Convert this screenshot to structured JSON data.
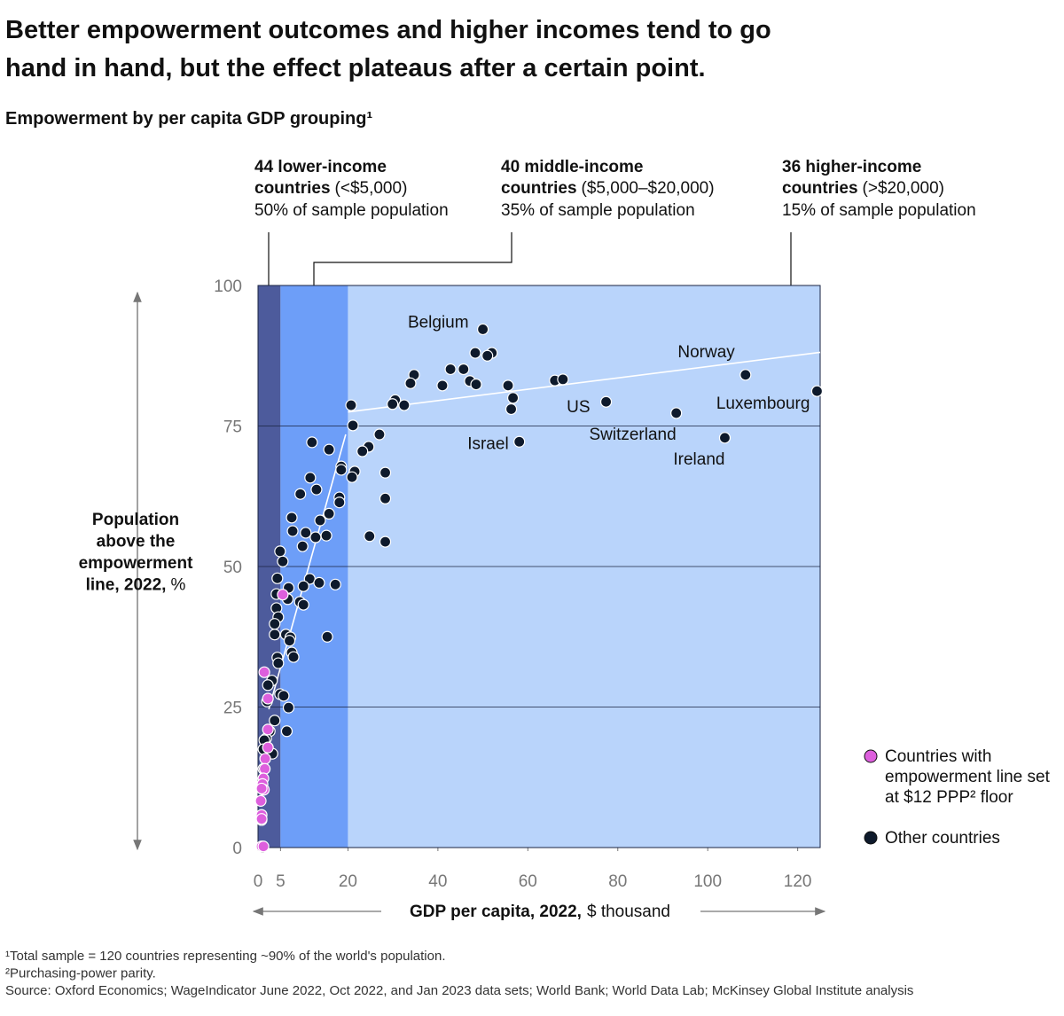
{
  "chart_data": {
    "type": "scatter",
    "title_lines": [
      "Better empowerment outcomes and higher incomes tend to go",
      "hand in hand, but the effect plateaus after a certain point."
    ],
    "subtitle": "Empowerment by per capita GDP grouping¹",
    "groups": [
      {
        "title_lines": [
          "44 lower-income",
          "countries"
        ],
        "range": "(<$5,000)",
        "share": "50% of sample population"
      },
      {
        "title_lines": [
          "40 middle-income",
          "countries"
        ],
        "range": "($5,000–$20,000)",
        "share": "35% of sample population"
      },
      {
        "title_lines": [
          "36 higher-income",
          "countries"
        ],
        "range": "(>$20,000)",
        "share": "15% of sample population"
      }
    ],
    "bands": [
      {
        "x0": 0,
        "x1": 5,
        "color": "#4d5b9c"
      },
      {
        "x0": 5,
        "x1": 20,
        "color": "#6d9ef8"
      },
      {
        "x0": 20,
        "x1": 125,
        "color": "#b9d4fb"
      }
    ],
    "y_label_lines": [
      "Population",
      "above the",
      "empowerment",
      "line, 2022,"
    ],
    "y_label_unit": "%",
    "x_label": "GDP per capita, 2022,",
    "x_label_unit": "$ thousand",
    "xlim": [
      0,
      125
    ],
    "ylim": [
      0,
      100
    ],
    "xticks": [
      0,
      5,
      20,
      40,
      60,
      80,
      100,
      120
    ],
    "yticks": [
      0,
      25,
      50,
      75,
      100
    ],
    "grid": true,
    "trend_lines": [
      {
        "color": "#ffffff",
        "x": [
          2.4,
          19.5
        ],
        "values": [
          24.6,
          73.5
        ]
      },
      {
        "color": "#ffffff",
        "x": [
          20,
          125
        ],
        "values": [
          77.5,
          88.1
        ]
      }
    ],
    "series": [
      {
        "name": "Countries with empowerment line set at $12 PPP² floor",
        "color": "#dd5fdd",
        "x": [
          1.4,
          2.2,
          5.5,
          2.2,
          2.2,
          1.6,
          1.5,
          1.2,
          1,
          1.3,
          0.8,
          0.6,
          0.8,
          0.8,
          0.8,
          1.2
        ],
        "values": [
          31.2,
          26.5,
          45,
          21,
          17.8,
          15.8,
          14,
          12.3,
          11.3,
          10.3,
          10.5,
          8.3,
          5.8,
          5.1,
          0.2,
          0.2
        ]
      },
      {
        "name": "Other countries",
        "color": "#0e1a2c",
        "x": [
          50,
          108.4,
          124.3,
          77.4,
          93,
          103.8,
          58.1,
          52,
          48.3,
          51,
          42.8,
          45.7,
          34.7,
          33.9,
          47.1,
          48.5,
          41,
          55.6,
          66,
          67.8,
          56.7,
          56.3,
          30.5,
          29.9,
          32.5,
          20.7,
          21.1,
          27,
          24.6,
          23.2,
          15.8,
          12,
          18.5,
          18.5,
          21.5,
          20.9,
          28.3,
          11.6,
          13,
          9.4,
          18.1,
          18.1,
          28.3,
          15.8,
          13.8,
          7.5,
          7.7,
          10.6,
          12.8,
          15.2,
          24.8,
          28.3,
          9.9,
          4.9,
          5.5,
          4.3,
          11.5,
          17.2,
          13.6,
          10.1,
          6.8,
          4.1,
          6.6,
          9.3,
          10.1,
          4.1,
          4.5,
          3.7,
          3.7,
          6.2,
          7.2,
          7,
          15.4,
          7.5,
          7.9,
          4.3,
          4.5,
          3.1,
          2.2,
          4.9,
          5.7,
          2,
          6.8,
          3.7,
          2.6,
          6.4,
          1.8,
          1.4,
          3.2,
          1.2,
          1.2,
          1.2,
          0.8,
          1
        ],
        "values": [
          92.2,
          84.1,
          81.2,
          79.3,
          77.3,
          72.9,
          72.2,
          88,
          88,
          87.5,
          85.1,
          85.1,
          84.1,
          82.6,
          83,
          82.4,
          82.2,
          82.2,
          83.1,
          83.3,
          80,
          78,
          79.6,
          78.9,
          78.7,
          78.7,
          75.1,
          73.5,
          71.3,
          70.5,
          70.8,
          72.1,
          67.8,
          67.2,
          66.9,
          65.9,
          66.7,
          65.8,
          63.7,
          62.9,
          62.3,
          61.4,
          62.1,
          59.4,
          58.2,
          58.7,
          56.3,
          56,
          55.2,
          55.5,
          55.4,
          54.4,
          53.6,
          52.7,
          50.9,
          47.9,
          47.8,
          46.8,
          47.1,
          46.5,
          46.2,
          45.1,
          44.2,
          43.7,
          43.2,
          42.6,
          41,
          39.8,
          37.9,
          37.9,
          37.4,
          36.8,
          37.5,
          34.7,
          33.9,
          33.8,
          32.8,
          29.7,
          28.9,
          27.3,
          27,
          26,
          24.9,
          22.6,
          20.7,
          20.7,
          19.4,
          19.1,
          16.7,
          17.5,
          14,
          10.3,
          4.9,
          0
        ],
        "labels": [
          "Belgium",
          "Norway",
          "Luxembourg",
          "US",
          "Switzerland",
          "Ireland",
          "Israel",
          null,
          null,
          null,
          null,
          null,
          null,
          null,
          null,
          null,
          null,
          null,
          null,
          null,
          null,
          null,
          null,
          null,
          null,
          null,
          null,
          null,
          null,
          null,
          null,
          null,
          null,
          null,
          null,
          null,
          null,
          null,
          null,
          null,
          null,
          null,
          null,
          null,
          null,
          null,
          null,
          null,
          null,
          null,
          null,
          null,
          null,
          null,
          null,
          null,
          null,
          null,
          null,
          null,
          null,
          null,
          null,
          null,
          null,
          null,
          null,
          null,
          null,
          null,
          null,
          null,
          null,
          null,
          null,
          null,
          null,
          null,
          null,
          null,
          null,
          null,
          null,
          null,
          null,
          null,
          null,
          null,
          null,
          null,
          null,
          null,
          null,
          null
        ]
      }
    ],
    "footnotes": [
      "¹Total sample = 120 countries representing ~90% of the world's population.",
      "²Purchasing-power parity.",
      "Source: Oxford Economics; WageIndicator June 2022, Oct 2022, and Jan 2023 data sets; World Bank; World Data Lab; McKinsey Global Institute analysis"
    ]
  }
}
